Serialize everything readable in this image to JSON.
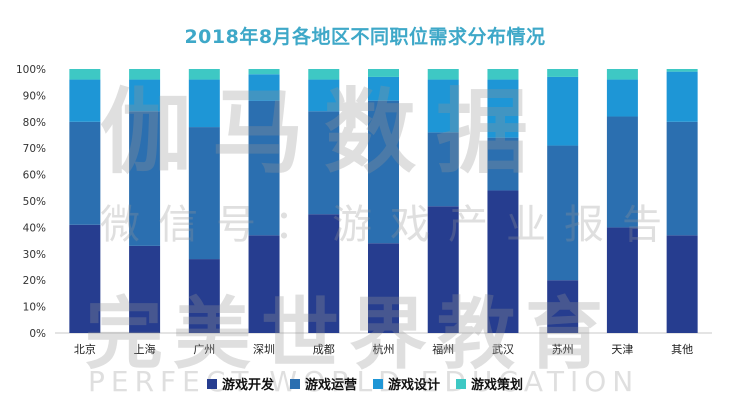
{
  "chart_data": {
    "type": "bar",
    "stacked": true,
    "title": "2018年8月各地区不同职位需求分布情况",
    "categories": [
      "北京",
      "上海",
      "广州",
      "深圳",
      "成都",
      "杭州",
      "福州",
      "武汉",
      "苏州",
      "天津",
      "其他"
    ],
    "series": [
      {
        "name": "游戏开发",
        "color": "#263d8f",
        "values": [
          41,
          33,
          28,
          37,
          45,
          34,
          48,
          54,
          20,
          40,
          37
        ]
      },
      {
        "name": "游戏运营",
        "color": "#2b6fb0",
        "values": [
          39,
          51,
          50,
          51,
          39,
          54,
          28,
          20,
          51,
          42,
          43
        ]
      },
      {
        "name": "游戏设计",
        "color": "#1e96d6",
        "values": [
          16,
          12,
          18,
          10,
          12,
          9,
          20,
          22,
          26,
          14,
          19
        ]
      },
      {
        "name": "游戏策划",
        "color": "#3ec8c4",
        "values": [
          4,
          4,
          4,
          2,
          4,
          3,
          4,
          4,
          3,
          4,
          1
        ]
      }
    ],
    "ylim": [
      0,
      100
    ],
    "yticks": [
      "0%",
      "10%",
      "20%",
      "30%",
      "40%",
      "50%",
      "60%",
      "70%",
      "80%",
      "90%",
      "100%"
    ],
    "xlabel": "",
    "ylabel": "",
    "legend": "bottom",
    "grid": false
  },
  "watermarks": {
    "line1": "伽马数据",
    "line2": "微信号：游戏产业报告",
    "line3": "完美世界教育",
    "line4": "PERFECT WORLD EDUCATION"
  }
}
